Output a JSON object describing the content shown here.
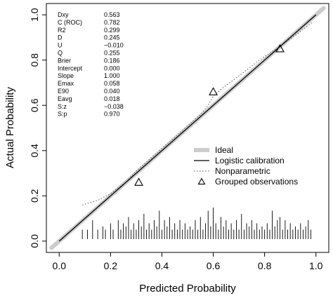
{
  "chart_data": {
    "type": "line",
    "title": "",
    "xlabel": "Predicted Probability",
    "ylabel": "Actual Probability",
    "xlim": [
      -0.05,
      1.05
    ],
    "ylim": [
      -0.05,
      1.05
    ],
    "x_ticks": [
      "0.0",
      "0.2",
      "0.4",
      "0.6",
      "0.8",
      "1.0"
    ],
    "y_ticks": [
      "0.0",
      "0.2",
      "0.4",
      "0.6",
      "0.8",
      "1.0"
    ],
    "grid": false,
    "legend_position": "lower-right",
    "stats": [
      {
        "label": "Dxy",
        "value": "0.563"
      },
      {
        "label": "C (ROC)",
        "value": "0.782"
      },
      {
        "label": "R2",
        "value": "0.299"
      },
      {
        "label": "D",
        "value": "0.245"
      },
      {
        "label": "U",
        "value": "−0.010"
      },
      {
        "label": "Q",
        "value": "0.255"
      },
      {
        "label": "Brier",
        "value": "0.186"
      },
      {
        "label": "Intercept",
        "value": "0.000"
      },
      {
        "label": "Slope",
        "value": "1.000"
      },
      {
        "label": "Emax",
        "value": "0.058"
      },
      {
        "label": "E90",
        "value": "0.040"
      },
      {
        "label": "Eavg",
        "value": "0.018"
      },
      {
        "label": "S:z",
        "value": "−0.038"
      },
      {
        "label": "S:p",
        "value": "0.970"
      }
    ],
    "legend": [
      {
        "label": "Ideal",
        "style": "thick-light-gray-line",
        "color": "#cccccc"
      },
      {
        "label": "Logistic calibration",
        "style": "solid-line",
        "color": "#000000"
      },
      {
        "label": "Nonparametric",
        "style": "dotted-line",
        "color": "#555555"
      },
      {
        "label": "Grouped observations",
        "style": "triangle",
        "color": "#000000"
      }
    ],
    "series": [
      {
        "name": "Ideal",
        "x": [
          -0.03,
          1.03
        ],
        "y": [
          -0.03,
          1.03
        ]
      },
      {
        "name": "Logistic calibration",
        "x": [
          0.0,
          1.0
        ],
        "y": [
          0.0,
          1.0
        ]
      },
      {
        "name": "Nonparametric",
        "x": [
          0.09,
          0.15,
          0.2,
          0.26,
          0.3,
          0.35,
          0.4,
          0.45,
          0.5,
          0.55,
          0.58,
          0.6,
          0.64,
          0.7,
          0.78,
          0.86,
          0.92,
          0.99
        ],
        "y": [
          0.16,
          0.18,
          0.21,
          0.26,
          0.31,
          0.36,
          0.41,
          0.46,
          0.51,
          0.56,
          0.6,
          0.64,
          0.68,
          0.73,
          0.8,
          0.86,
          0.91,
          0.97
        ]
      },
      {
        "name": "Grouped observations",
        "x": [
          0.31,
          0.6,
          0.86
        ],
        "y": [
          0.26,
          0.66,
          0.85
        ]
      }
    ],
    "rug": {
      "x": [
        0.09,
        0.11,
        0.13,
        0.15,
        0.17,
        0.18,
        0.2,
        0.21,
        0.23,
        0.24,
        0.25,
        0.26,
        0.27,
        0.28,
        0.29,
        0.3,
        0.31,
        0.32,
        0.33,
        0.34,
        0.35,
        0.36,
        0.37,
        0.38,
        0.39,
        0.4,
        0.41,
        0.42,
        0.43,
        0.44,
        0.45,
        0.46,
        0.47,
        0.48,
        0.49,
        0.5,
        0.51,
        0.52,
        0.53,
        0.54,
        0.55,
        0.56,
        0.57,
        0.58,
        0.59,
        0.6,
        0.61,
        0.62,
        0.63,
        0.64,
        0.65,
        0.66,
        0.67,
        0.68,
        0.69,
        0.7,
        0.71,
        0.72,
        0.73,
        0.74,
        0.75,
        0.76,
        0.77,
        0.78,
        0.79,
        0.8,
        0.81,
        0.82,
        0.83,
        0.84,
        0.85,
        0.86,
        0.87,
        0.88,
        0.89,
        0.9,
        0.91,
        0.92,
        0.93,
        0.94,
        0.95,
        0.96,
        0.97,
        0.98
      ],
      "h": [
        0.3,
        0.3,
        0.6,
        0.3,
        0.4,
        0.3,
        0.5,
        0.3,
        0.6,
        0.3,
        0.5,
        0.4,
        0.7,
        0.3,
        0.5,
        0.3,
        0.6,
        0.4,
        0.8,
        0.3,
        0.5,
        0.3,
        0.6,
        0.4,
        0.9,
        0.3,
        0.6,
        0.4,
        0.7,
        0.3,
        0.5,
        0.3,
        0.6,
        0.3,
        0.5,
        0.3,
        0.4,
        0.3,
        0.6,
        0.3,
        0.7,
        0.3,
        0.5,
        0.9,
        0.4,
        1.0,
        0.5,
        0.3,
        0.7,
        0.4,
        0.6,
        0.3,
        0.5,
        0.3,
        0.6,
        0.3,
        0.8,
        0.3,
        0.5,
        0.4,
        0.6,
        0.3,
        0.5,
        0.3,
        0.4,
        0.3,
        0.5,
        0.3,
        0.9,
        0.4,
        0.6,
        0.7,
        0.3,
        0.6,
        0.3,
        0.5,
        0.3,
        0.4,
        0.3,
        0.5,
        0.3,
        0.4,
        0.6,
        0.3
      ]
    }
  }
}
